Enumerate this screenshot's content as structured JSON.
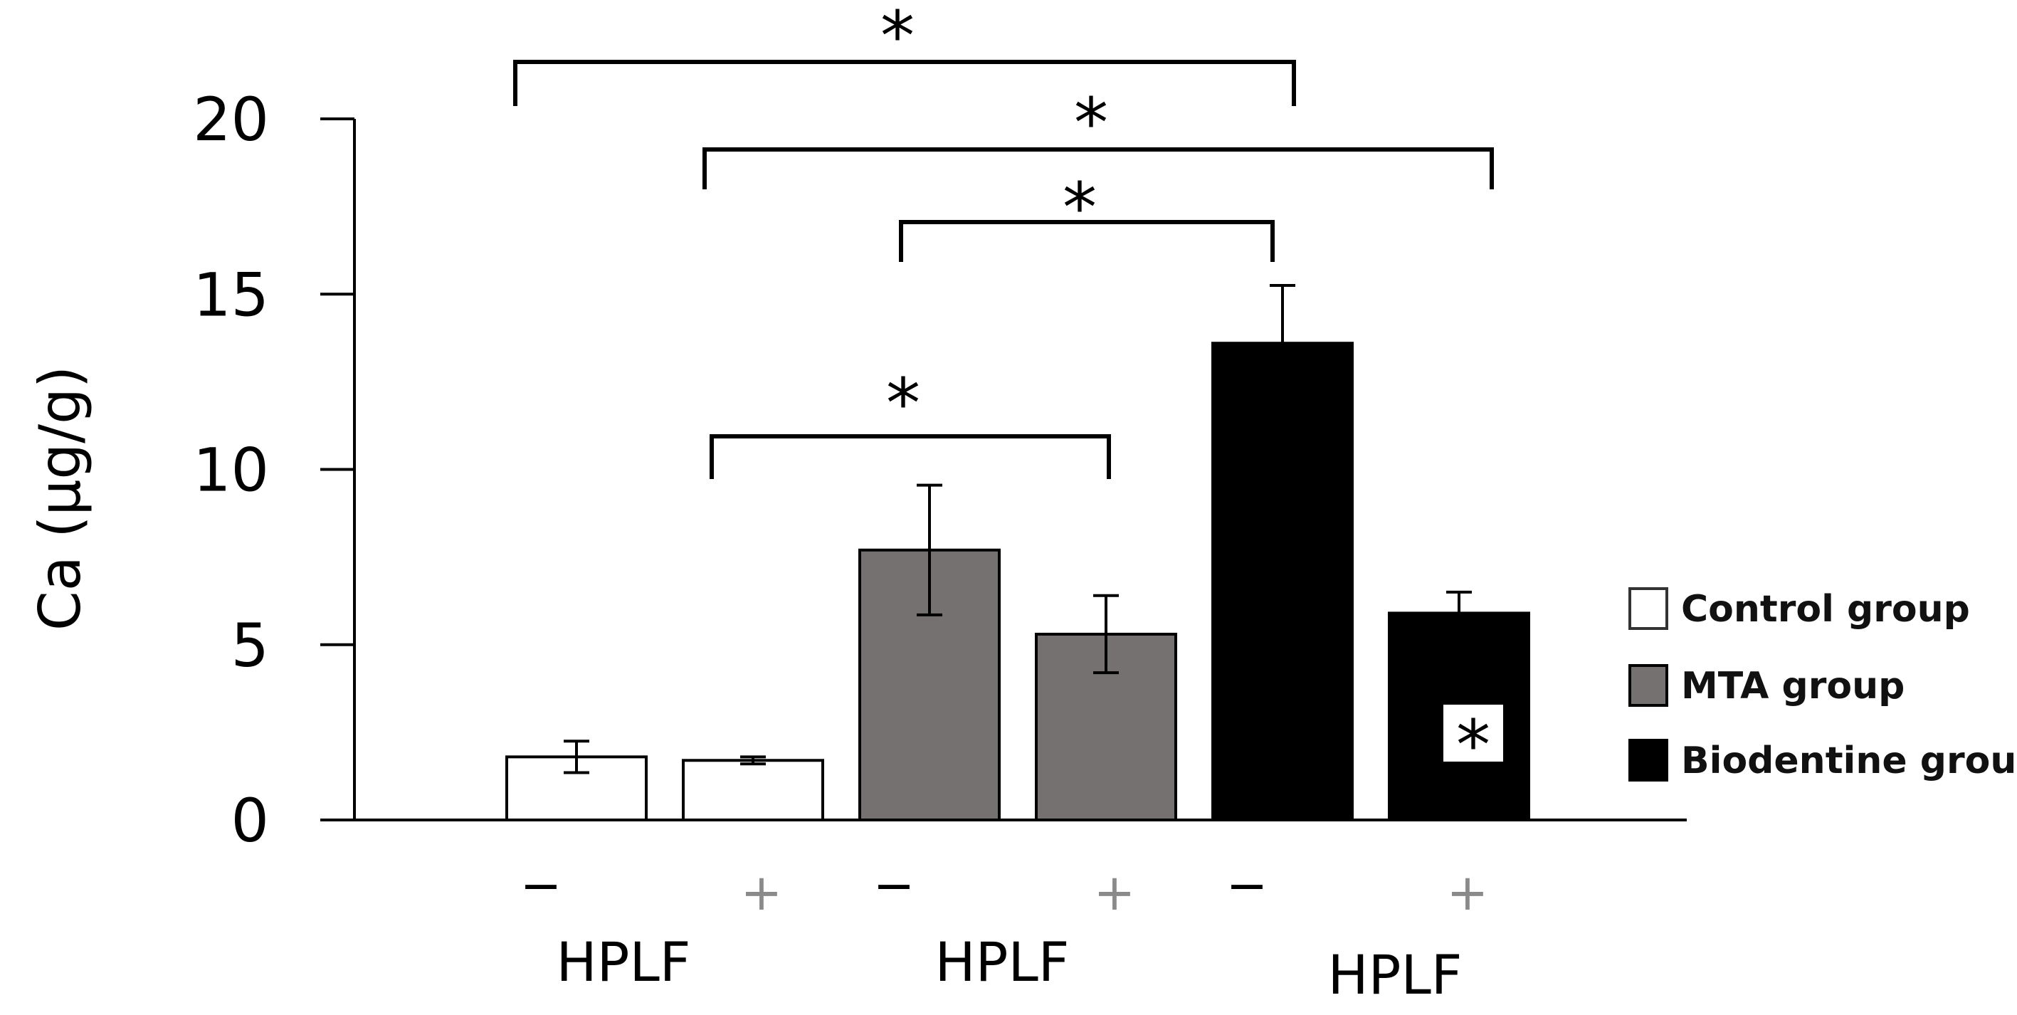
{
  "chart_data": {
    "type": "bar",
    "ylabel": "Ca (μg/g)",
    "ylim": [
      0,
      20
    ],
    "yticks": [
      "0",
      "5",
      "10",
      "15",
      "20"
    ],
    "grid": false,
    "legend_position": "right",
    "categories": [
      {
        "sign": "−",
        "group_label": "HPLF",
        "series": "Control group"
      },
      {
        "sign": "+",
        "group_label": "HPLF",
        "series": "Control group"
      },
      {
        "sign": "−",
        "group_label": "HPLF",
        "series": "MTA group"
      },
      {
        "sign": "+",
        "group_label": "HPLF",
        "series": "MTA group"
      },
      {
        "sign": "−",
        "group_label": "HPLF",
        "series": "Biodentine group"
      },
      {
        "sign": "+",
        "group_label": "HPLF",
        "series": "Biodentine group"
      }
    ],
    "group_labels": [
      "HPLF",
      "HPLF",
      "HPLF"
    ],
    "values": [
      1.8,
      1.7,
      7.7,
      5.3,
      13.6,
      5.9
    ],
    "errors": [
      0.45,
      0.1,
      1.85,
      1.1,
      1.65,
      0.6
    ],
    "series": [
      {
        "name": "Control group",
        "color": "#ffffff"
      },
      {
        "name": "MTA group",
        "color": "#767171"
      },
      {
        "name": "Biodentine group",
        "color": "#000000"
      }
    ],
    "bar_series_index": [
      0,
      0,
      1,
      1,
      2,
      2
    ],
    "significance_brackets": [
      {
        "from": 0,
        "to": 4,
        "label": "*"
      },
      {
        "from": 1,
        "to": 5,
        "label": "*"
      },
      {
        "from": 2,
        "to": 4,
        "label": "*"
      },
      {
        "from": 1,
        "to": 3,
        "label": "*"
      }
    ],
    "bar_annotations": [
      {
        "bar": 5,
        "label": "*"
      }
    ]
  }
}
